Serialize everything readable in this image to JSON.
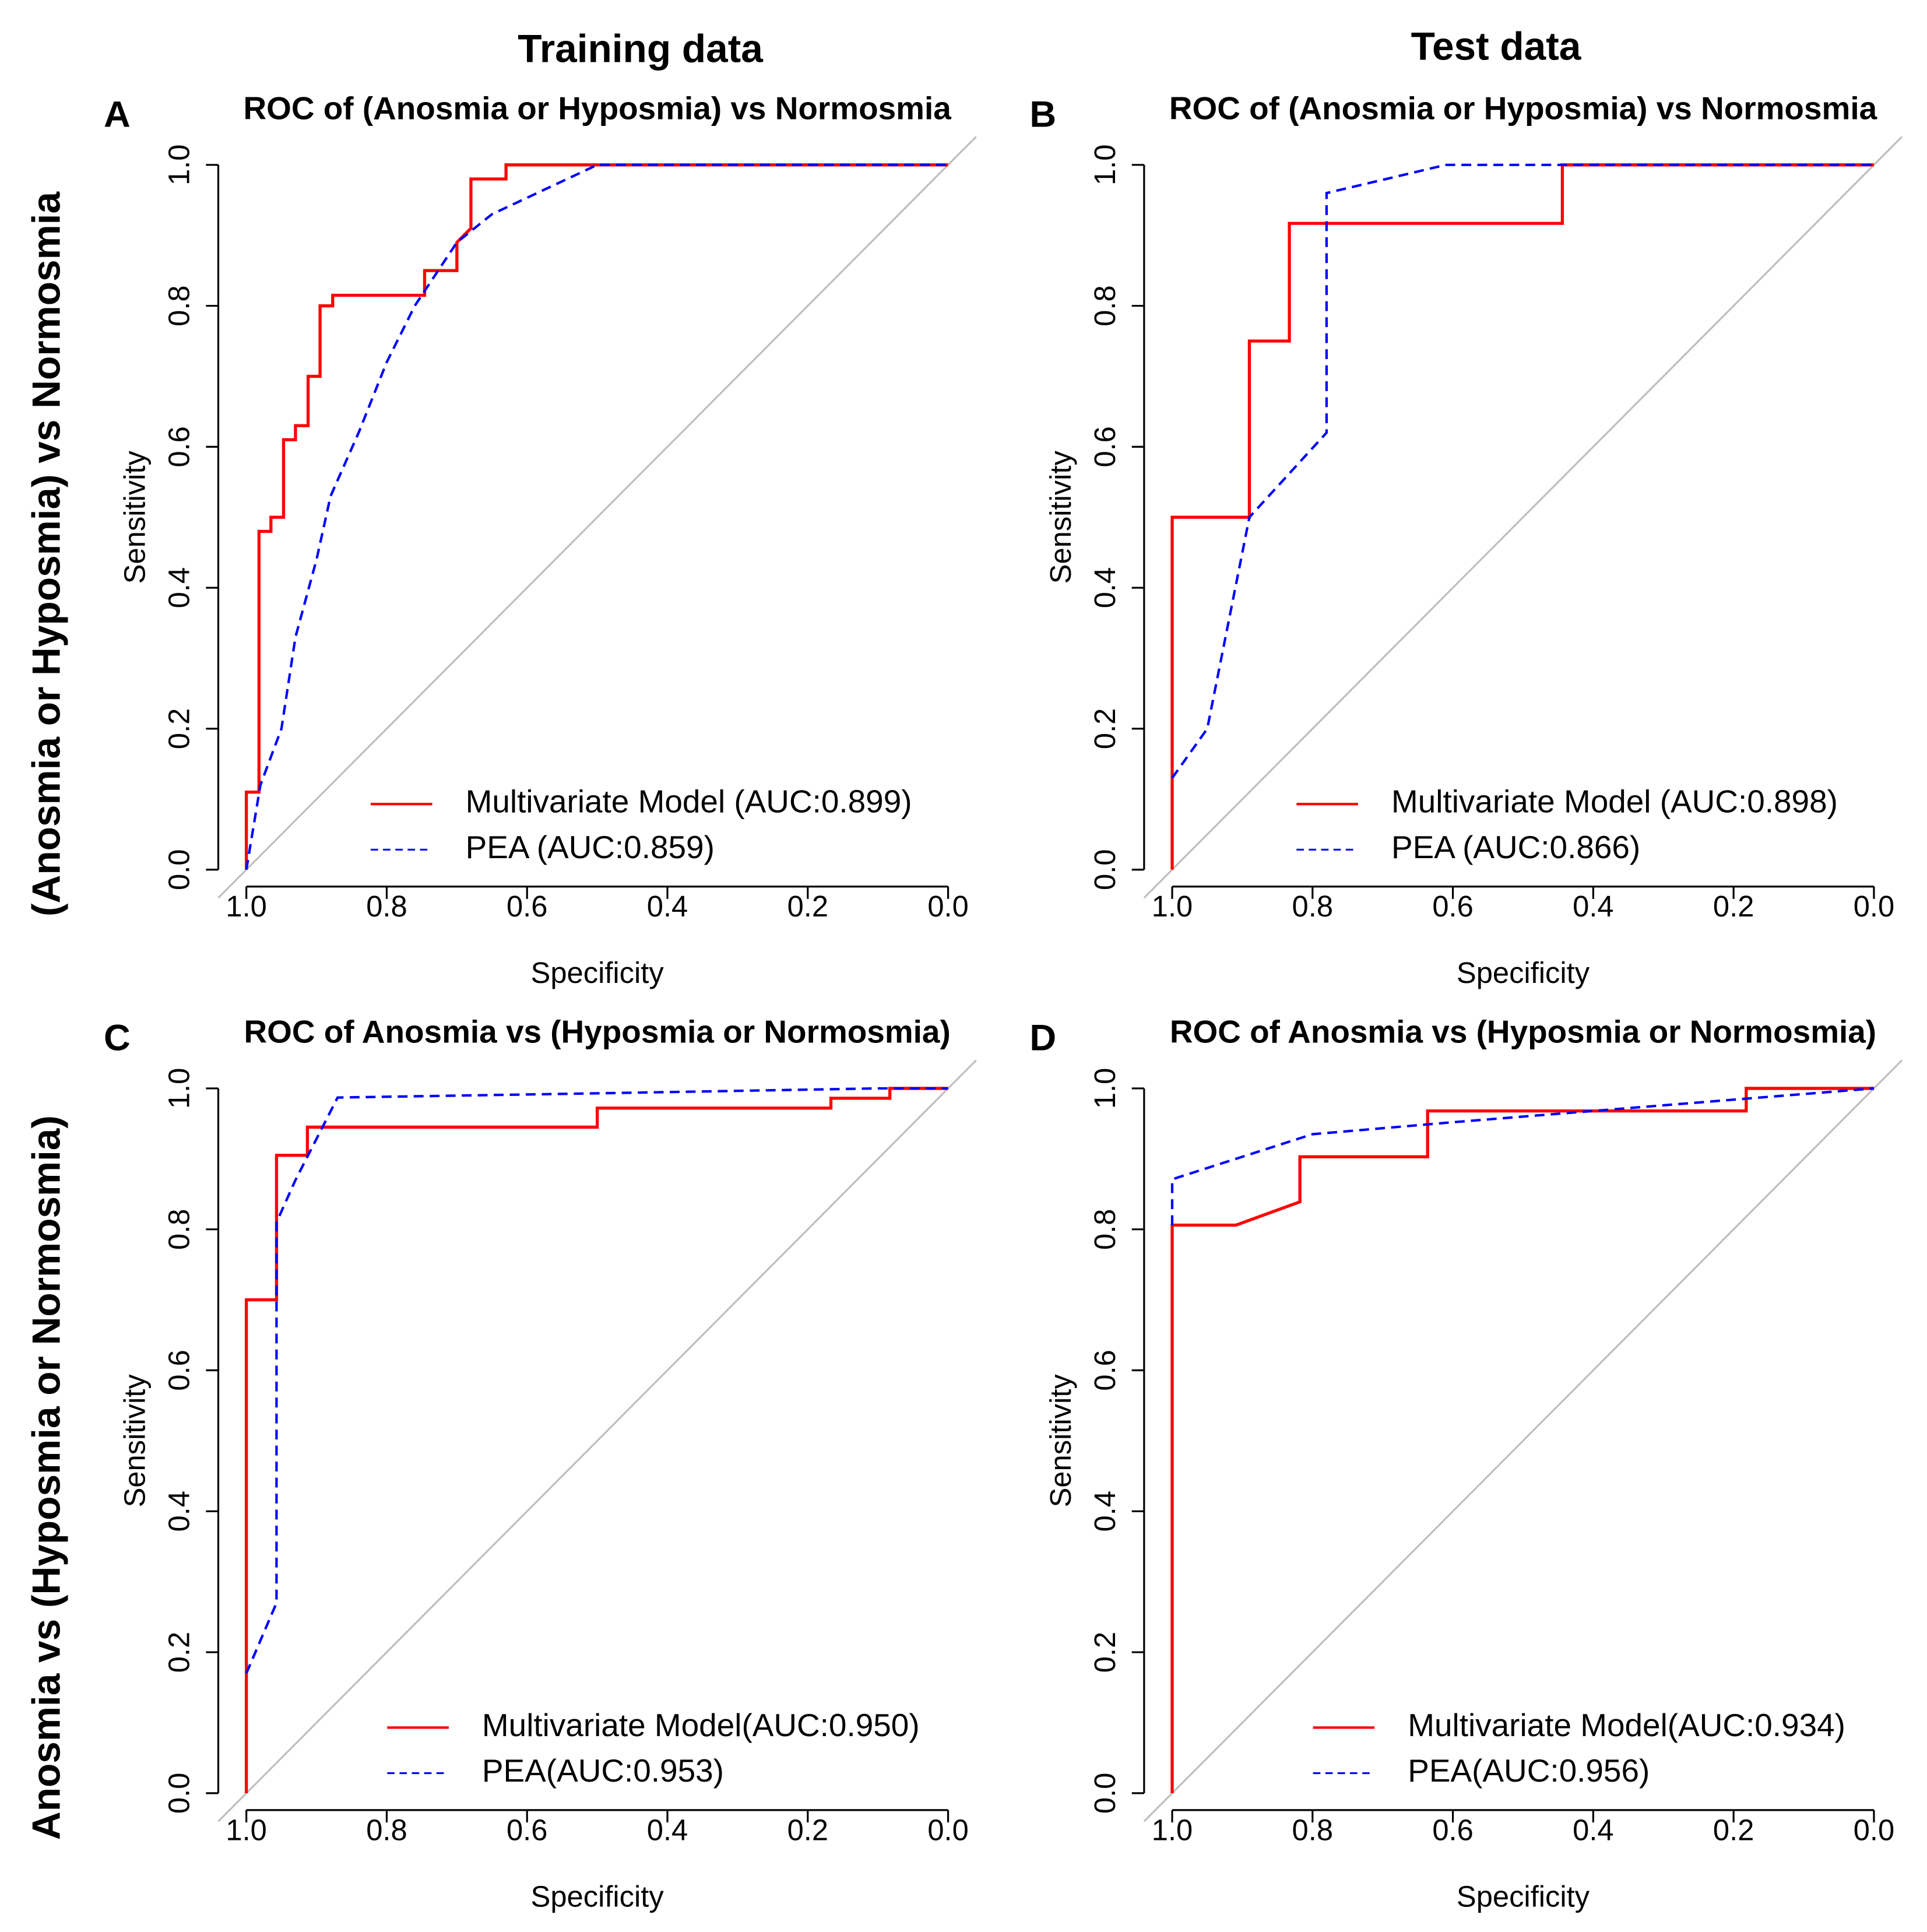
{
  "column_titles": [
    "Training data",
    "Test data"
  ],
  "row_titles": [
    "(Anosmia or Hyposmia) vs Normosmia",
    "Anosmia vs (Hyposmia or Normosmia)"
  ],
  "chart_data": [
    {
      "type": "line",
      "panel": "A",
      "title": "ROC of (Anosmia or Hyposmia) vs Normosmia",
      "xlabel": "Specificity",
      "ylabel": "Sensitivity",
      "xlim": [
        1.04,
        -0.04
      ],
      "ylim": [
        -0.024,
        1.04
      ],
      "xticks": [
        {
          "value": 1,
          "label": "1.0"
        },
        {
          "value": 0.8,
          "label": "0.8"
        },
        {
          "value": 0.6,
          "label": "0.6"
        },
        {
          "value": 0.4,
          "label": "0.4"
        },
        {
          "value": 0.2,
          "label": "0.2"
        },
        {
          "value": 0,
          "label": "0.0"
        }
      ],
      "yticks": [
        {
          "value": 0,
          "label": "0.0"
        },
        {
          "value": 0.2,
          "label": "0.2"
        },
        {
          "value": 0.4,
          "label": "0.4"
        },
        {
          "value": 0.6,
          "label": "0.6"
        },
        {
          "value": 0.8,
          "label": "0.8"
        },
        {
          "value": 1,
          "label": "1.0"
        }
      ],
      "legend": "bottom right",
      "series": [
        {
          "name": "Multivariate Model (AUC:0.899)",
          "color": "#ff0000",
          "linestyle": "solid",
          "x": [
            1,
            1,
            0.982,
            0.982,
            0.965,
            0.965,
            0.947,
            0.947,
            0.93,
            0.93,
            0.912,
            0.912,
            0.895,
            0.895,
            0.877,
            0.877,
            0.746,
            0.746,
            0.7,
            0.7,
            0.68,
            0.68,
            0.63,
            0.63,
            0
          ],
          "values": [
            0,
            0.11,
            0.11,
            0.48,
            0.48,
            0.5,
            0.5,
            0.61,
            0.61,
            0.63,
            0.63,
            0.7,
            0.7,
            0.8,
            0.8,
            0.815,
            0.815,
            0.85,
            0.85,
            0.89,
            0.91,
            0.98,
            0.98,
            1,
            1
          ]
        },
        {
          "name": "PEA (AUC:0.859)",
          "color": "#0000ff",
          "linestyle": "dashed",
          "x": [
            1,
            0.98,
            0.95,
            0.93,
            0.9,
            0.88,
            0.84,
            0.8,
            0.76,
            0.7,
            0.65,
            0.5,
            0
          ],
          "values": [
            0,
            0.12,
            0.2,
            0.33,
            0.44,
            0.53,
            0.62,
            0.72,
            0.8,
            0.89,
            0.93,
            1,
            1
          ]
        }
      ]
    },
    {
      "type": "line",
      "panel": "B",
      "title": "ROC of (Anosmia or Hyposmia) vs Normosmia",
      "xlabel": "Specificity",
      "ylabel": "Sensitivity",
      "xlim": [
        1.04,
        -0.04
      ],
      "ylim": [
        -0.024,
        1.04
      ],
      "xticks": [
        {
          "value": 1,
          "label": "1.0"
        },
        {
          "value": 0.8,
          "label": "0.8"
        },
        {
          "value": 0.6,
          "label": "0.6"
        },
        {
          "value": 0.4,
          "label": "0.4"
        },
        {
          "value": 0.2,
          "label": "0.2"
        },
        {
          "value": 0,
          "label": "0.0"
        }
      ],
      "yticks": [
        {
          "value": 0,
          "label": "0.0"
        },
        {
          "value": 0.2,
          "label": "0.2"
        },
        {
          "value": 0.4,
          "label": "0.4"
        },
        {
          "value": 0.6,
          "label": "0.6"
        },
        {
          "value": 0.8,
          "label": "0.8"
        },
        {
          "value": 1,
          "label": "1.0"
        }
      ],
      "legend": "bottom right",
      "series": [
        {
          "name": "Multivariate Model (AUC:0.898)",
          "color": "#ff0000",
          "linestyle": "solid",
          "x": [
            1,
            1,
            0.89,
            0.89,
            0.833,
            0.833,
            0.444,
            0.444,
            0
          ],
          "values": [
            0,
            0.5,
            0.5,
            0.75,
            0.75,
            0.917,
            0.917,
            1,
            1
          ]
        },
        {
          "name": "PEA (AUC:0.866)",
          "color": "#0000ff",
          "linestyle": "dashed",
          "x": [
            1,
            0.95,
            0.89,
            0.78,
            0.78,
            0.61,
            0
          ],
          "values": [
            0.13,
            0.2,
            0.5,
            0.62,
            0.96,
            1,
            1
          ]
        }
      ]
    },
    {
      "type": "line",
      "panel": "C",
      "title": "ROC of Anosmia vs (Hyposmia or Normosmia)",
      "xlabel": "Specificity",
      "ylabel": "Sensitivity",
      "xlim": [
        1.04,
        -0.04
      ],
      "ylim": [
        -0.024,
        1.04
      ],
      "xticks": [
        {
          "value": 1,
          "label": "1.0"
        },
        {
          "value": 0.8,
          "label": "0.8"
        },
        {
          "value": 0.6,
          "label": "0.6"
        },
        {
          "value": 0.4,
          "label": "0.4"
        },
        {
          "value": 0.2,
          "label": "0.2"
        },
        {
          "value": 0,
          "label": "0.0"
        }
      ],
      "yticks": [
        {
          "value": 0,
          "label": "0.0"
        },
        {
          "value": 0.2,
          "label": "0.2"
        },
        {
          "value": 0.4,
          "label": "0.4"
        },
        {
          "value": 0.6,
          "label": "0.6"
        },
        {
          "value": 0.8,
          "label": "0.8"
        },
        {
          "value": 1,
          "label": "1.0"
        }
      ],
      "legend": "bottom right",
      "series": [
        {
          "name": "Multivariate Model(AUC:0.950)",
          "color": "#ff0000",
          "linestyle": "solid",
          "x": [
            1,
            1,
            0.957,
            0.957,
            0.913,
            0.913,
            0.5,
            0.5,
            0.167,
            0.167,
            0.083,
            0.083,
            0
          ],
          "values": [
            0,
            0.7,
            0.7,
            0.905,
            0.905,
            0.945,
            0.945,
            0.972,
            0.972,
            0.986,
            0.986,
            1,
            1
          ]
        },
        {
          "name": "PEA(AUC:0.953)",
          "color": "#0000ff",
          "linestyle": "dashed",
          "x": [
            1,
            0.957,
            0.957,
            0.93,
            0.87,
            0.5,
            0.1,
            0
          ],
          "values": [
            0.17,
            0.27,
            0.81,
            0.87,
            0.987,
            0.993,
            1,
            1
          ]
        }
      ]
    },
    {
      "type": "line",
      "panel": "D",
      "title": "ROC of Anosmia vs (Hyposmia or Normosmia)",
      "xlabel": "Specificity",
      "ylabel": "Sensitivity",
      "xlim": [
        1.04,
        -0.04
      ],
      "ylim": [
        -0.024,
        1.04
      ],
      "xticks": [
        {
          "value": 1,
          "label": "1.0"
        },
        {
          "value": 0.8,
          "label": "0.8"
        },
        {
          "value": 0.6,
          "label": "0.6"
        },
        {
          "value": 0.4,
          "label": "0.4"
        },
        {
          "value": 0.2,
          "label": "0.2"
        },
        {
          "value": 0,
          "label": "0.0"
        }
      ],
      "yticks": [
        {
          "value": 0,
          "label": "0.0"
        },
        {
          "value": 0.2,
          "label": "0.2"
        },
        {
          "value": 0.4,
          "label": "0.4"
        },
        {
          "value": 0.6,
          "label": "0.6"
        },
        {
          "value": 0.8,
          "label": "0.8"
        },
        {
          "value": 1,
          "label": "1.0"
        }
      ],
      "legend": "bottom right",
      "series": [
        {
          "name": "Multivariate Model(AUC:0.934)",
          "color": "#ff0000",
          "linestyle": "solid",
          "x": [
            1,
            1,
            0.909,
            0.818,
            0.818,
            0.636,
            0.636,
            0.182,
            0.182,
            0
          ],
          "values": [
            0,
            0.806,
            0.806,
            0.839,
            0.903,
            0.903,
            0.968,
            0.968,
            1,
            1
          ]
        },
        {
          "name": "PEA(AUC:0.956)",
          "color": "#0000ff",
          "linestyle": "dashed",
          "x": [
            1,
            1,
            0.8,
            0.6,
            0.4,
            0.2,
            0
          ],
          "values": [
            0.806,
            0.871,
            0.935,
            0.952,
            0.968,
            0.984,
            1
          ]
        }
      ]
    }
  ]
}
